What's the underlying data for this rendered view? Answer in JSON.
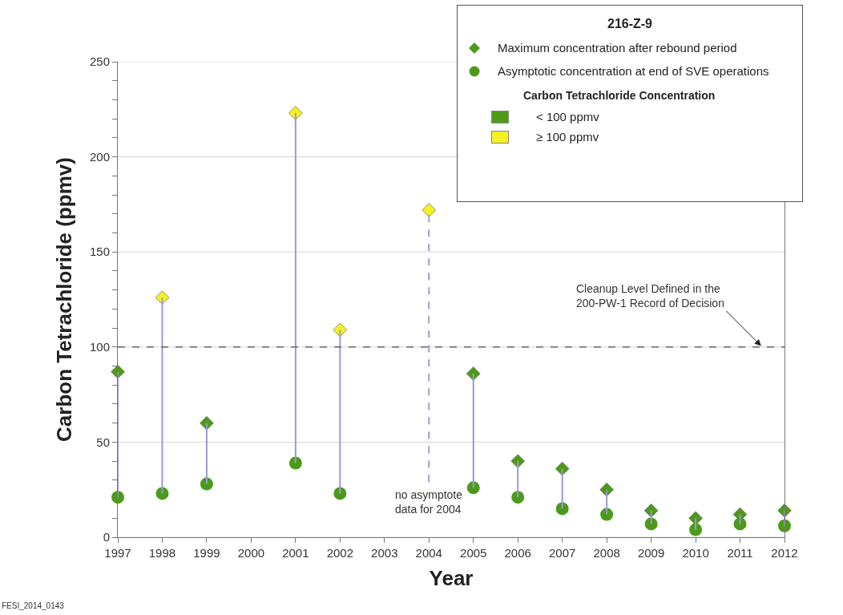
{
  "chart_data": {
    "type": "scatter",
    "xlabel": "Year",
    "ylabel": "Carbon Tetrachloride (ppmv)",
    "legend_title": "216-Z-9",
    "legend": "top right",
    "grid": "y",
    "x": [
      1997,
      1998,
      1999,
      2001,
      2002,
      2004,
      2005,
      2006,
      2007,
      2008,
      2009,
      2010,
      2011,
      2012
    ],
    "xlim": [
      1997,
      2012
    ],
    "xticks": [
      1997,
      1998,
      1999,
      2000,
      2001,
      2002,
      2003,
      2004,
      2005,
      2006,
      2007,
      2008,
      2009,
      2010,
      2011,
      2012
    ],
    "ylim": [
      0,
      250
    ],
    "yticks": [
      0,
      {
        "value": 10,
        "label": null
      },
      {
        "value": 20,
        "label": null
      },
      {
        "value": 30,
        "label": null
      },
      {
        "value": 40,
        "label": null
      },
      50,
      {
        "value": 60,
        "label": null
      },
      {
        "value": 70,
        "label": null
      },
      {
        "value": 80,
        "label": null
      },
      {
        "value": 90,
        "label": null
      },
      100,
      {
        "value": 110,
        "label": null
      },
      {
        "value": 120,
        "label": null
      },
      {
        "value": 130,
        "label": null
      },
      {
        "value": 140,
        "label": null
      },
      150,
      {
        "value": 160,
        "label": null
      },
      {
        "value": 170,
        "label": null
      },
      {
        "value": 180,
        "label": null
      },
      {
        "value": 190,
        "label": null
      },
      200,
      {
        "value": 210,
        "label": null
      },
      {
        "value": 220,
        "label": null
      },
      {
        "value": 230,
        "label": null
      },
      {
        "value": 240,
        "label": null
      },
      250
    ],
    "series": [
      {
        "name": "Maximum concentration after rebound period",
        "marker": "diamond",
        "color": "#4d9a1a",
        "colors": [
          "#4d9a1a",
          "#f5f022",
          "#4d9a1a",
          "#f5f022",
          "#f5f022",
          "#f5f022",
          "#4d9a1a",
          "#4d9a1a",
          "#4d9a1a",
          "#4d9a1a",
          "#4d9a1a",
          "#4d9a1a",
          "#4d9a1a",
          "#4d9a1a"
        ],
        "values": [
          87,
          126,
          60,
          223,
          109,
          172,
          86,
          40,
          36,
          25,
          14,
          10,
          12,
          14
        ],
        "errors": [
          [
            21,
            87
          ],
          [
            23,
            126
          ],
          [
            28,
            60
          ],
          [
            39,
            223
          ],
          [
            23,
            109
          ],
          [
            29,
            172
          ],
          [
            26,
            86
          ],
          [
            21,
            40
          ],
          [
            15,
            36
          ],
          [
            12,
            25
          ],
          [
            7,
            14
          ],
          [
            4,
            10
          ],
          [
            7,
            12
          ],
          [
            6,
            14
          ]
        ]
      },
      {
        "name": "Asymptotic concentration at end of SVE operations",
        "marker": "circle",
        "color": "#4d9a1a",
        "values": [
          21,
          23,
          28,
          39,
          23,
          null,
          26,
          21,
          15,
          12,
          7,
          4,
          7,
          6
        ]
      }
    ],
    "ref_lines": [
      {
        "axis": "y",
        "value": 100,
        "label": "Cleanup Level Defined in the\n200-PW-1 Record of Decision",
        "color": "#666666",
        "line_style": "dashed"
      }
    ],
    "annotations": [
      "no asymptote\ndata for 2004",
      "Carbon Tetrachloride Concentration",
      "< 100 ppmv",
      "≥ 100 ppmv",
      "FESI_2014_0143"
    ]
  }
}
